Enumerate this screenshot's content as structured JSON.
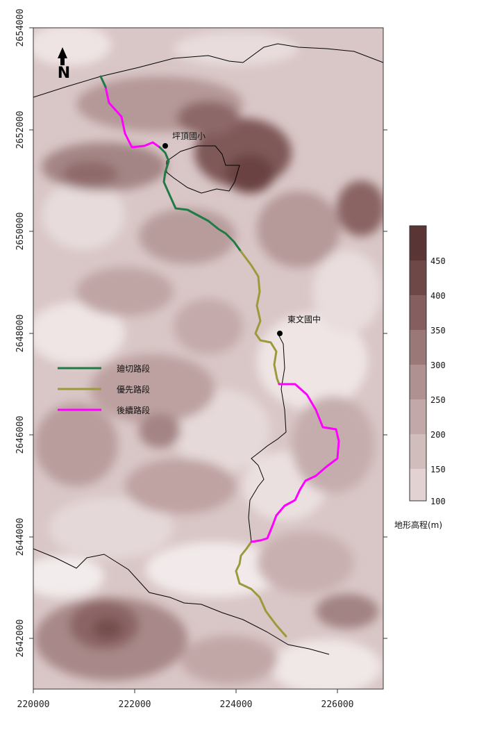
{
  "map": {
    "north_label": "N",
    "x_ticks": [
      "220000",
      "222000",
      "224000",
      "226000"
    ],
    "y_ticks": [
      "2654000",
      "2652000",
      "2650000",
      "2648000",
      "2646000",
      "2644000",
      "2642000"
    ],
    "places": [
      {
        "name": "坪頂國小"
      },
      {
        "name": "東文國中"
      }
    ],
    "legend": [
      {
        "label": "廸切路段",
        "color": "#1f7a45"
      },
      {
        "label": "優先路段",
        "color": "#9a9a3a"
      },
      {
        "label": "後續路段",
        "color": "#ff00ff"
      }
    ],
    "colorbar": {
      "title": "地形高程(m)",
      "levels": [
        "100",
        "150",
        "200",
        "250",
        "300",
        "350",
        "400",
        "450"
      ],
      "colors": [
        "#efe4e4",
        "#e3d2d2",
        "#d2bdbd",
        "#c2a8a8",
        "#b09191",
        "#9b7878",
        "#855f5f",
        "#6e4747",
        "#5a3535"
      ]
    },
    "colors": {
      "terrain_low": "#f4eded",
      "terrain_high": "#5e3a3a",
      "boundary": "#000000"
    }
  }
}
